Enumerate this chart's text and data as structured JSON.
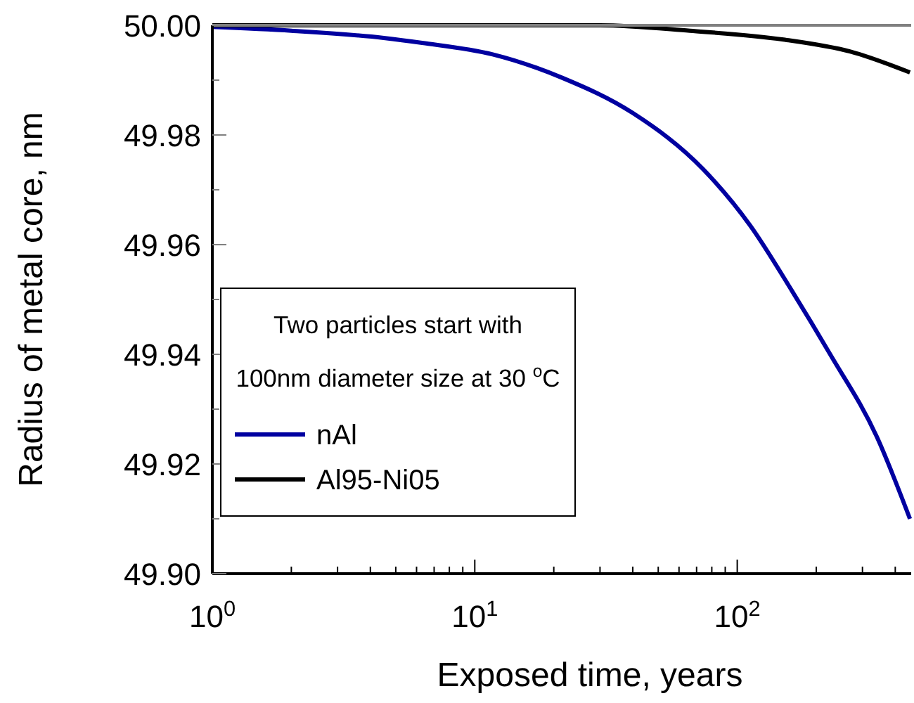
{
  "chart_data": {
    "type": "line",
    "xlabel": "Exposed time, years",
    "ylabel": "Radius of metal core, nm",
    "legend_title": "Two particles start with 100nm diameter size at 30 $^{o}$C",
    "legend": "bottom left",
    "log": "x",
    "xlim": [
      1,
      460
    ],
    "ylim": [
      49.9,
      50.0
    ],
    "xticks": [
      {
        "value": 1,
        "label": "10$^{0}$"
      },
      {
        "value": 2,
        "label": null
      },
      {
        "value": 3,
        "label": null
      },
      {
        "value": 4,
        "label": null
      },
      {
        "value": 5,
        "label": null
      },
      {
        "value": 6,
        "label": null
      },
      {
        "value": 7,
        "label": null
      },
      {
        "value": 8,
        "label": null
      },
      {
        "value": 9,
        "label": null
      },
      {
        "value": 10,
        "label": "10$^{1}$"
      },
      {
        "value": 20,
        "label": null
      },
      {
        "value": 30,
        "label": null
      },
      {
        "value": 40,
        "label": null
      },
      {
        "value": 50,
        "label": null
      },
      {
        "value": 60,
        "label": null
      },
      {
        "value": 70,
        "label": null
      },
      {
        "value": 80,
        "label": null
      },
      {
        "value": 90,
        "label": null
      },
      {
        "value": 100,
        "label": "10$^{2}$"
      },
      {
        "value": 200,
        "label": null
      },
      {
        "value": 300,
        "label": null
      },
      {
        "value": 400,
        "label": null
      }
    ],
    "yticks": [
      {
        "value": 49.9,
        "label": "49.90"
      },
      {
        "value": 49.91,
        "label": null
      },
      {
        "value": 49.92,
        "label": "49.92"
      },
      {
        "value": 49.93,
        "label": null
      },
      {
        "value": 49.94,
        "label": "49.94"
      },
      {
        "value": 49.95,
        "label": null
      },
      {
        "value": 49.96,
        "label": "49.96"
      },
      {
        "value": 49.97,
        "label": null
      },
      {
        "value": 49.98,
        "label": "49.98"
      },
      {
        "value": 49.99,
        "label": null
      },
      {
        "value": 50.0,
        "label": "50.00"
      }
    ],
    "grid": false,
    "line_style": "solid",
    "marker": "none",
    "series": [
      {
        "name": "nAl",
        "color": "#0000a0",
        "x": [
          1,
          2,
          4.5,
          6.3,
          11.7,
          21.6,
          40,
          74,
          112,
          162,
          226,
          340,
          455
        ],
        "values": [
          49.9997,
          49.999,
          49.9977,
          49.9968,
          49.9947,
          49.9904,
          49.984,
          49.9738,
          49.9635,
          49.9515,
          49.94,
          49.925,
          49.91
        ]
      },
      {
        "name": "Al95-Ni05",
        "color": "#000000",
        "x": [
          1,
          10,
          30,
          66,
          150,
          270,
          455
        ],
        "values": [
          50.0,
          50.0,
          50.0,
          49.999,
          49.9974,
          49.9952,
          49.9914
        ]
      }
    ]
  }
}
